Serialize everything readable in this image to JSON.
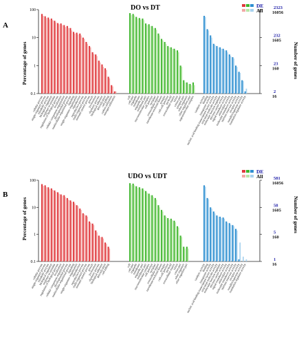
{
  "chart_data": [
    {
      "panel": "A",
      "type": "bar",
      "title": "DO vs DT",
      "ylabel": "Percentage of genes",
      "y2label": "Number of genes",
      "yscale": "log",
      "ylim": [
        0.1,
        100
      ],
      "yticks": [
        "100",
        "10",
        "1",
        "0.1"
      ],
      "right_ticks": [
        {
          "top": "2323",
          "bottom": "16056"
        },
        {
          "top": "232",
          "bottom": "1605"
        },
        {
          "top": "23",
          "bottom": "160"
        },
        {
          "top": "2",
          "bottom": "16"
        }
      ],
      "legend": [
        "DE",
        "All"
      ],
      "colors": {
        "red_de": "#e0393e",
        "red_all": "#f2a8a6",
        "green_de": "#3fb62e",
        "green_all": "#b8e6a8",
        "blue_de": "#2f8fd0",
        "blue_all": "#a8d2ee"
      },
      "groups": [
        {
          "color": "red",
          "pairs": [
            [
              70,
              60
            ],
            [
              58,
              50
            ],
            [
              52,
              45
            ],
            [
              48,
              42
            ],
            [
              40,
              35
            ],
            [
              33,
              30
            ],
            [
              32,
              28
            ],
            [
              28,
              24
            ],
            [
              26,
              22
            ],
            [
              22,
              18
            ],
            [
              16,
              14
            ],
            [
              15,
              13
            ],
            [
              14,
              12
            ],
            [
              10,
              9
            ],
            [
              7,
              6
            ],
            [
              5,
              4.5
            ],
            [
              3,
              2.6
            ],
            [
              2.5,
              2.2
            ],
            [
              1.5,
              1.3
            ],
            [
              1.1,
              0.9
            ],
            [
              0.8,
              0.7
            ],
            [
              0.4,
              0.35
            ],
            [
              0.2,
              0.18
            ],
            [
              0.12,
              0.12
            ]
          ],
          "labels": [
            "cellular process",
            "single-organism process",
            "metabolic process",
            "biological regulation",
            "response to stimulus",
            "regulation of biological process",
            "localization",
            "cellular component organization",
            "developmental process",
            "multicellular organismal process",
            "signaling",
            "single-organism organization",
            "reproduction",
            "reproductive process",
            "multi-organism process",
            "immune system process",
            "growth",
            "locomotion",
            "rhythmic process",
            "biological adhesion",
            "detoxification",
            "cell killing",
            "carbon utilization",
            "nitrogen utilization"
          ]
        },
        {
          "color": "green",
          "pairs": [
            [
              75,
              65
            ],
            [
              70,
              62
            ],
            [
              55,
              48
            ],
            [
              50,
              44
            ],
            [
              48,
              42
            ],
            [
              32,
              28
            ],
            [
              30,
              26
            ],
            [
              26,
              22
            ],
            [
              22,
              19
            ],
            [
              14,
              12
            ],
            [
              9,
              8
            ],
            [
              7,
              6
            ],
            [
              5,
              4.5
            ],
            [
              4.5,
              4
            ],
            [
              4,
              3.5
            ],
            [
              3.5,
              3
            ],
            [
              1,
              0.9
            ],
            [
              0.3,
              0.25
            ],
            [
              0.25,
              0.22
            ],
            [
              0.22,
              0.2
            ],
            [
              0.25,
              0.2
            ]
          ],
          "labels": [
            "cell",
            "cell part",
            "organelle",
            "membrane",
            "organelle part",
            "membrane part",
            "macromolecular complex",
            "cell junction",
            "symplast",
            "extracellular region",
            "membrane-enclosed lumen",
            "synapse",
            "cell-cell junction",
            "nucleoid",
            "extracellular matrix",
            "virion",
            "virion part",
            "synapse part",
            "other organism",
            "other organism part",
            "supramolecular complex"
          ]
        },
        {
          "color": "blue",
          "pairs": [
            [
              60,
              55
            ],
            [
              20,
              18
            ],
            [
              12,
              10
            ],
            [
              6,
              5.5
            ],
            [
              5,
              4.5
            ],
            [
              4.5,
              4
            ],
            [
              4,
              3.5
            ],
            [
              3.5,
              3
            ],
            [
              2.5,
              2.2
            ],
            [
              2,
              1.8
            ],
            [
              1,
              0.9
            ],
            [
              0.6,
              0.55
            ],
            [
              0.3,
              0.28
            ],
            [
              0.12,
              0.15
            ]
          ],
          "labels": [
            "catalytic activity",
            "binding",
            "transporter activity",
            "nucleic acid binding transcription factor activity",
            "structural molecule activity",
            "molecular function regulator",
            "electron carrier activity",
            "signal transducer activity",
            "antioxidant activity",
            "molecular transducer activity",
            "nutrient reservoir activity",
            "receptor activity",
            "metallochaperone activity",
            "translation regulator activity"
          ]
        }
      ]
    },
    {
      "panel": "B",
      "type": "bar",
      "title": "UDO vs UDT",
      "ylabel": "Percentage of genes",
      "y2label": "Number of genes",
      "yscale": "log",
      "ylim": [
        0.1,
        100
      ],
      "yticks": [
        "100",
        "10",
        "1",
        "0.1"
      ],
      "right_ticks": [
        {
          "top": "581",
          "bottom": "16056"
        },
        {
          "top": "58",
          "bottom": "1605"
        },
        {
          "top": "5",
          "bottom": "160"
        },
        {
          "top": "1",
          "bottom": "16"
        }
      ],
      "legend": [
        "DE",
        "All"
      ],
      "colors": {
        "red_de": "#e0393e",
        "red_all": "#f2a8a6",
        "green_de": "#3fb62e",
        "green_all": "#b8e6a8",
        "blue_de": "#2f8fd0",
        "blue_all": "#a8d2ee"
      },
      "groups": [
        {
          "color": "red",
          "pairs": [
            [
              72,
              62
            ],
            [
              65,
              55
            ],
            [
              55,
              48
            ],
            [
              50,
              44
            ],
            [
              42,
              37
            ],
            [
              36,
              32
            ],
            [
              30,
              27
            ],
            [
              28,
              24
            ],
            [
              22,
              19
            ],
            [
              18,
              16
            ],
            [
              16,
              14
            ],
            [
              12,
              11
            ],
            [
              9,
              8
            ],
            [
              6,
              5.5
            ],
            [
              5,
              4.5
            ],
            [
              3,
              2.7
            ],
            [
              2.5,
              2.2
            ],
            [
              1.4,
              1.2
            ],
            [
              0.9,
              0.8
            ],
            [
              0.8,
              0.7
            ],
            [
              0.5,
              0.45
            ],
            [
              0.35,
              0.3
            ]
          ],
          "labels": [
            "cellular process",
            "single-organism process",
            "metabolic process",
            "biological regulation",
            "response to stimulus",
            "regulation of biological process",
            "localization",
            "cellular component organization",
            "developmental process",
            "multicellular organismal process",
            "signaling",
            "single-organism organization",
            "reproduction",
            "reproductive process",
            "multi-organism process",
            "immune system process",
            "growth",
            "locomotion",
            "rhythmic process",
            "biological adhesion",
            "detoxification",
            "cell killing"
          ]
        },
        {
          "color": "green",
          "pairs": [
            [
              78,
              68
            ],
            [
              75,
              65
            ],
            [
              60,
              52
            ],
            [
              55,
              48
            ],
            [
              50,
              44
            ],
            [
              40,
              35
            ],
            [
              32,
              28
            ],
            [
              28,
              24
            ],
            [
              22,
              19
            ],
            [
              12,
              10
            ],
            [
              8,
              7
            ],
            [
              5,
              4.5
            ],
            [
              4,
              3.5
            ],
            [
              3.8,
              3.3
            ],
            [
              3.2,
              2.8
            ],
            [
              2,
              1.8
            ],
            [
              0.9,
              0.8
            ],
            [
              0.35,
              0.3
            ],
            [
              0.35,
              0.3
            ]
          ],
          "labels": [
            "cell",
            "cell part",
            "organelle",
            "membrane",
            "organelle part",
            "membrane part",
            "macromolecular complex",
            "cell junction",
            "symplast",
            "extracellular region",
            "membrane-enclosed lumen",
            "synapse",
            "cell-cell junction",
            "nucleoid",
            "extracellular matrix",
            "virion",
            "virion part",
            "other organism",
            "other organism part"
          ]
        },
        {
          "color": "blue",
          "pairs": [
            [
              65,
              58
            ],
            [
              22,
              20
            ],
            [
              10,
              9
            ],
            [
              7,
              6
            ],
            [
              5,
              4.5
            ],
            [
              4.5,
              4
            ],
            [
              4.2,
              3.8
            ],
            [
              3,
              2.7
            ],
            [
              2.6,
              2.3
            ],
            [
              2.2,
              2
            ],
            [
              1.6,
              1.4
            ],
            [
              0.12,
              0.5
            ],
            [
              0.1,
              0.15
            ],
            [
              0.1,
              0.12
            ]
          ],
          "labels": [
            "catalytic activity",
            "binding",
            "transporter activity",
            "nucleic acid binding transcription factor activity",
            "structural molecule activity",
            "molecular function regulator",
            "electron carrier activity",
            "signal transducer activity",
            "antioxidant activity",
            "molecular transducer activity",
            "nutrient reservoir activity",
            "receptor activity",
            "metallochaperone activity",
            "translation regulator activity"
          ]
        }
      ]
    }
  ]
}
